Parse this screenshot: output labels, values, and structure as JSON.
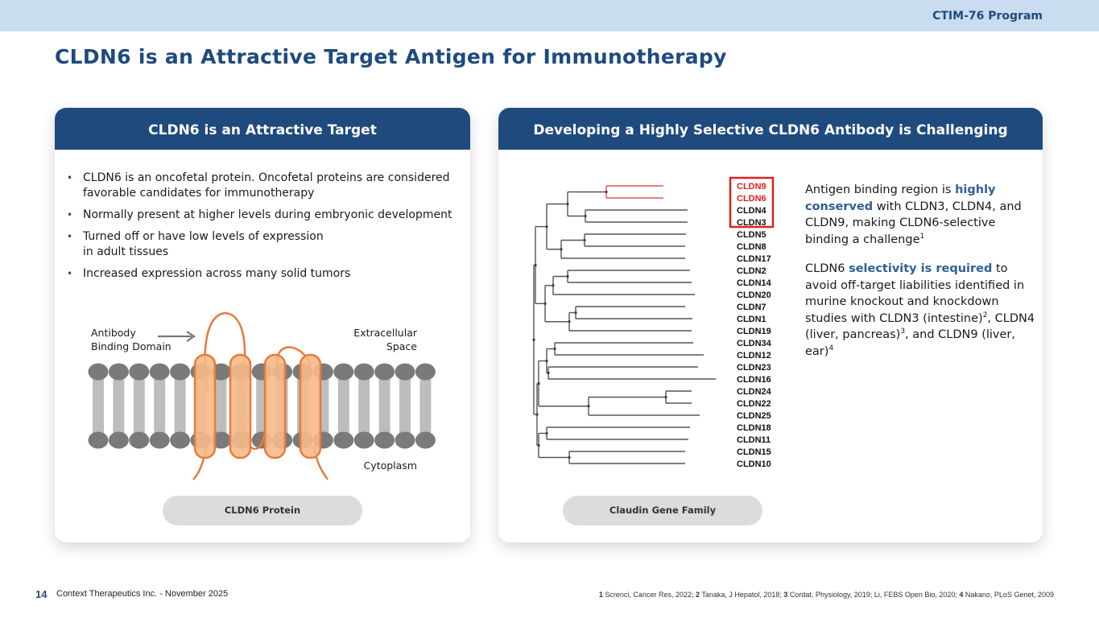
{
  "header": {
    "program": "CTIM-76 Program",
    "title": "CLDN6 is an Attractive Target Antigen for Immunotherapy"
  },
  "left_card": {
    "heading": "CLDN6 is an Attractive Target",
    "bullets": [
      {
        "line1": "CLDN6 is an oncofetal protein. Oncofetal proteins are considered",
        "line2": "favorable candidates for immunotherapy"
      },
      {
        "line1": "Normally present at higher levels during embryonic development",
        "line2": ""
      },
      {
        "line1": "Turned off or have low levels of expression",
        "line2": "in adult tissues"
      },
      {
        "line1": "Increased expression across many solid tumors",
        "line2": ""
      }
    ],
    "diagram": {
      "antibody_label_1": "Antibody",
      "antibody_label_2": "Binding Domain",
      "extracellular_1": "Extracellular",
      "extracellular_2": "Space",
      "cytoplasm": "Cytoplasm"
    },
    "caption": "CLDN6 Protein"
  },
  "right_card": {
    "heading": "Developing a Highly Selective CLDN6 Antibody is Challenging",
    "genes": [
      "CLDN9",
      "CLDN6",
      "CLDN4",
      "CLDN3",
      "CLDN5",
      "CLDN8",
      "CLDN17",
      "CLDN2",
      "CLDN14",
      "CLDN20",
      "CLDN7",
      "CLDN1",
      "CLDN19",
      "CLDN34",
      "CLDN12",
      "CLDN23",
      "CLDN16",
      "CLDN24",
      "CLDN22",
      "CLDN25",
      "CLDN18",
      "CLDN11",
      "CLDN15",
      "CLDN10"
    ],
    "highlighted_genes": [
      "CLDN9",
      "CLDN6"
    ],
    "highlight_color": "#e02020",
    "caption": "Claudin Gene Family",
    "para1": {
      "a": "Antigen binding region is ",
      "b": "highly conserved",
      "c": " with CLDN3, CLDN4, and CLDN9, making CLDN6-selective binding a challenge",
      "sup": "1"
    },
    "para2": {
      "a": "CLDN6 ",
      "b": "selectivity is required",
      "c": " to avoid off-target liabilities identified in murine knockout and knockdown studies with CLDN3 (intestine)",
      "sup2": "2",
      "d": ", CLDN4 (liver, pancreas)",
      "sup3": "3",
      "e": ", and CLDN9 (liver, ear)",
      "sup4": "4"
    }
  },
  "footer": {
    "page_number": "14",
    "company": "Context Therapeutics Inc. - November 2025",
    "refs": [
      {
        "n": "1",
        "text": " Screnci, Cancer Res, 2022; "
      },
      {
        "n": "2",
        "text": " Tanaka, J Hepatol, 2018; "
      },
      {
        "n": "3",
        "text": " Cordat, Physiology, 2019; Li, FEBS Open Bio, 2020; "
      },
      {
        "n": "4",
        "text": " Nakano, PLoS Genet, 2009"
      }
    ]
  },
  "colors": {
    "brand_blue": "#1f4a7e",
    "top_bar": "#c9dcf0",
    "highlight_text": "#2f5f99",
    "protein_fill": "#f6b98a",
    "protein_stroke": "#e87a3c"
  }
}
